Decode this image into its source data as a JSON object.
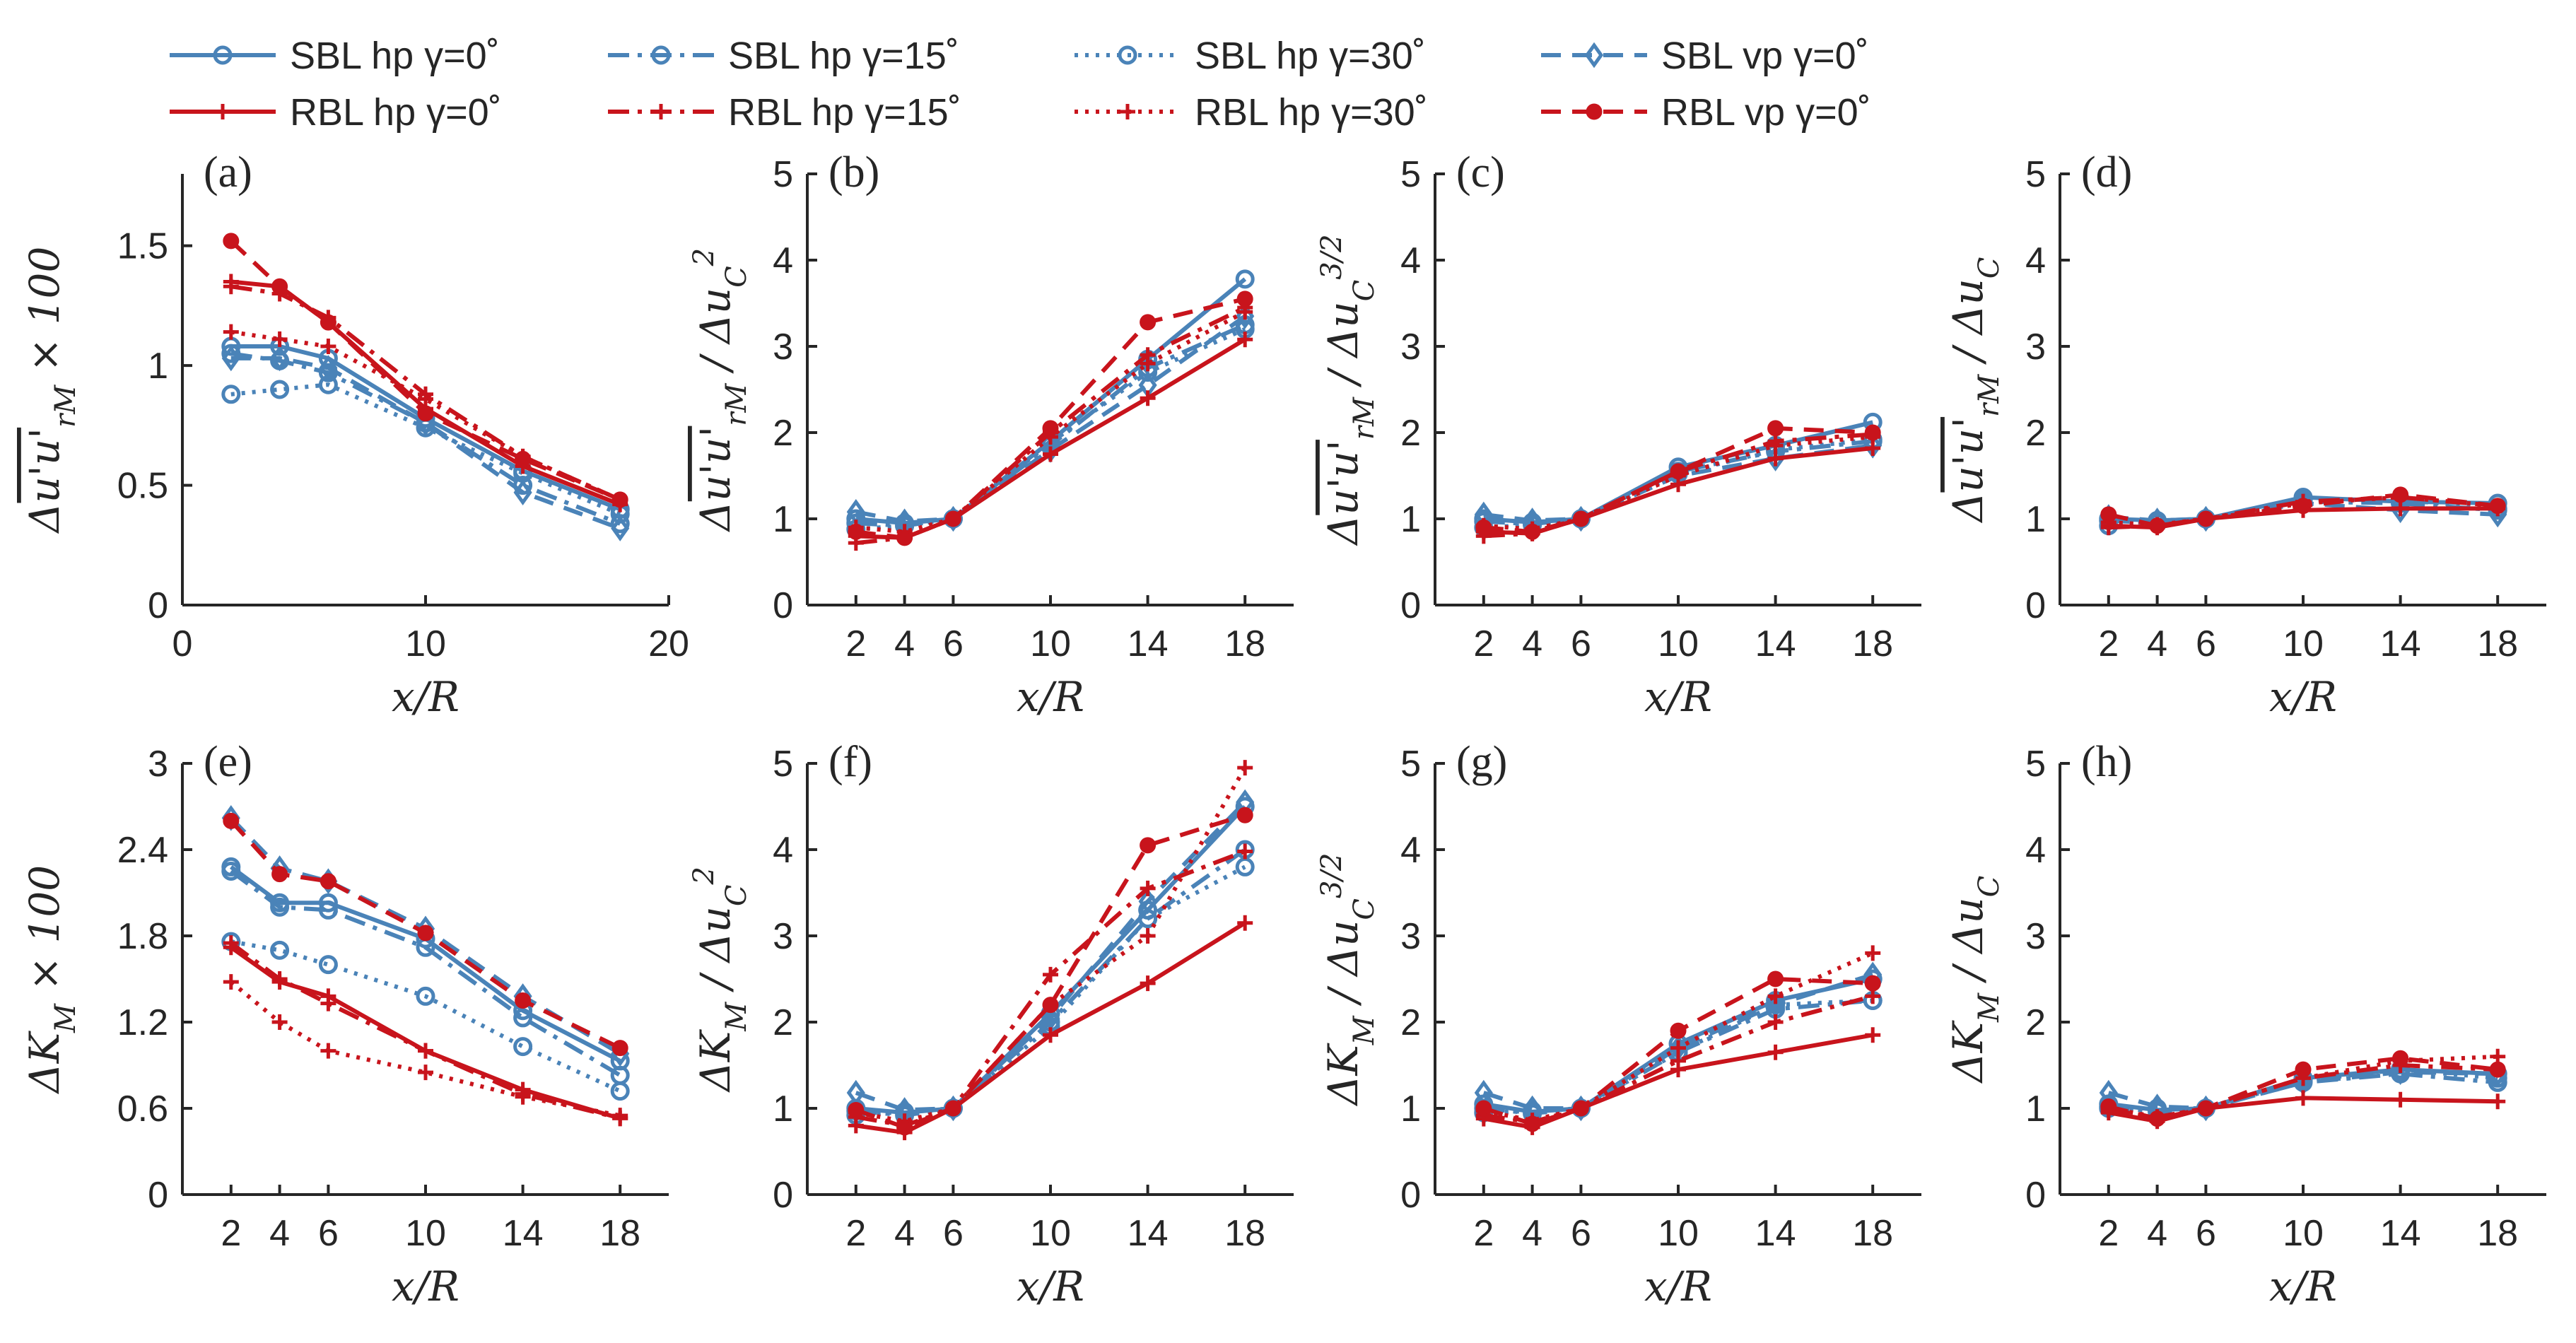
{
  "colors": {
    "sbl": "#4a83b8",
    "rbl": "#c8141c",
    "axis": "#262626"
  },
  "legend": [
    {
      "label": "SBL hp γ=0˚",
      "group": "sbl",
      "dash": "solid",
      "marker": "circle"
    },
    {
      "label": "SBL hp γ=15˚",
      "group": "sbl",
      "dash": "dashdot",
      "marker": "circle"
    },
    {
      "label": "SBL hp γ=30˚",
      "group": "sbl",
      "dash": "dotted",
      "marker": "circle"
    },
    {
      "label": "SBL vp γ=0˚",
      "group": "sbl",
      "dash": "dashed",
      "marker": "diamond"
    },
    {
      "label": "RBL hp γ=0˚",
      "group": "rbl",
      "dash": "solid",
      "marker": "plus"
    },
    {
      "label": "RBL hp γ=15˚",
      "group": "rbl",
      "dash": "dashdot",
      "marker": "plus"
    },
    {
      "label": "RBL hp γ=30˚",
      "group": "rbl",
      "dash": "dotted",
      "marker": "plus"
    },
    {
      "label": "RBL vp γ=0˚",
      "group": "rbl",
      "dash": "dashed",
      "marker": "dot"
    }
  ],
  "chart_data": [
    {
      "panel": "(a)",
      "type": "line",
      "ylabel": "Δu'u'_{rM} × 100",
      "xlabel": "x/R",
      "xlim": [
        0,
        20
      ],
      "ylim": [
        0,
        1.8
      ],
      "xticks": [
        0,
        10,
        20
      ],
      "xtick_labels": [
        "0",
        "10",
        "20"
      ],
      "yticks": [
        0,
        0.5,
        1,
        1.5
      ],
      "ytick_labels": [
        "0",
        "0.5",
        "1",
        "1.5"
      ],
      "x": [
        2,
        4,
        6,
        10,
        14,
        18
      ],
      "series": [
        {
          "name": "SBL hp γ=0˚",
          "values": [
            1.08,
            1.08,
            1.03,
            0.78,
            0.56,
            0.4
          ]
        },
        {
          "name": "SBL hp γ=15˚",
          "values": [
            1.05,
            1.02,
            0.97,
            0.76,
            0.5,
            0.34
          ]
        },
        {
          "name": "SBL hp γ=30˚",
          "values": [
            0.88,
            0.9,
            0.92,
            0.74,
            0.55,
            0.38
          ]
        },
        {
          "name": "SBL vp γ=0˚",
          "values": [
            1.03,
            1.03,
            0.99,
            0.76,
            0.47,
            0.32
          ]
        },
        {
          "name": "RBL hp γ=0˚",
          "values": [
            1.35,
            1.33,
            1.18,
            0.82,
            0.58,
            0.42
          ]
        },
        {
          "name": "RBL hp γ=15˚",
          "values": [
            1.33,
            1.3,
            1.2,
            0.88,
            0.62,
            0.44
          ]
        },
        {
          "name": "RBL hp γ=30˚",
          "values": [
            1.14,
            1.11,
            1.08,
            0.86,
            0.62,
            0.44
          ]
        },
        {
          "name": "RBL vp γ=0˚",
          "values": [
            1.52,
            1.33,
            1.18,
            0.8,
            0.61,
            0.44
          ]
        }
      ]
    },
    {
      "panel": "(b)",
      "type": "line",
      "ylabel": "Δu'u'_{rM} / Δu_C^2",
      "xlabel": "x/R",
      "xlim": [
        0,
        20
      ],
      "ylim": [
        0,
        5
      ],
      "xticks": [
        2,
        4,
        6,
        10,
        14,
        18
      ],
      "xtick_labels": [
        "2",
        "4",
        "6",
        "10",
        "14",
        "18"
      ],
      "yticks": [
        0,
        1,
        2,
        3,
        4,
        5
      ],
      "ytick_labels": [
        "0",
        "1",
        "2",
        "3",
        "4",
        "5"
      ],
      "x": [
        2,
        4,
        6,
        10,
        14,
        18
      ],
      "series": [
        {
          "name": "SBL hp γ=0˚",
          "values": [
            1.0,
            0.95,
            1.0,
            1.9,
            2.85,
            3.78
          ]
        },
        {
          "name": "SBL hp γ=15˚",
          "values": [
            0.95,
            0.92,
            1.0,
            1.85,
            2.75,
            3.25
          ]
        },
        {
          "name": "SBL hp γ=30˚",
          "values": [
            0.88,
            0.92,
            1.0,
            1.88,
            2.7,
            3.2
          ]
        },
        {
          "name": "SBL vp γ=0˚",
          "values": [
            1.08,
            0.97,
            1.0,
            1.8,
            2.55,
            3.35
          ]
        },
        {
          "name": "RBL hp γ=0˚",
          "values": [
            0.8,
            0.78,
            1.0,
            1.75,
            2.4,
            3.08
          ]
        },
        {
          "name": "RBL hp γ=15˚",
          "values": [
            0.72,
            0.78,
            1.0,
            2.0,
            2.9,
            3.45
          ]
        },
        {
          "name": "RBL hp γ=30˚",
          "values": [
            0.9,
            0.85,
            1.0,
            1.95,
            2.8,
            3.4
          ]
        },
        {
          "name": "RBL vp γ=0˚",
          "values": [
            0.85,
            0.78,
            1.0,
            2.05,
            3.28,
            3.55
          ]
        }
      ]
    },
    {
      "panel": "(c)",
      "type": "line",
      "ylabel": "Δu'u'_{rM} / Δu_C^{3/2}",
      "xlabel": "x/R",
      "xlim": [
        0,
        20
      ],
      "ylim": [
        0,
        5
      ],
      "xticks": [
        2,
        4,
        6,
        10,
        14,
        18
      ],
      "xtick_labels": [
        "2",
        "4",
        "6",
        "10",
        "14",
        "18"
      ],
      "yticks": [
        0,
        1,
        2,
        3,
        4,
        5
      ],
      "ytick_labels": [
        "0",
        "1",
        "2",
        "3",
        "4",
        "5"
      ],
      "x": [
        2,
        4,
        6,
        10,
        14,
        18
      ],
      "series": [
        {
          "name": "SBL hp γ=0˚",
          "values": [
            1.0,
            0.96,
            1.0,
            1.6,
            1.85,
            2.12
          ]
        },
        {
          "name": "SBL hp γ=15˚",
          "values": [
            0.97,
            0.94,
            1.0,
            1.55,
            1.78,
            1.9
          ]
        },
        {
          "name": "SBL hp γ=30˚",
          "values": [
            0.9,
            0.93,
            1.0,
            1.52,
            1.8,
            1.92
          ]
        },
        {
          "name": "SBL vp γ=0˚",
          "values": [
            1.05,
            0.98,
            1.0,
            1.5,
            1.7,
            1.85
          ]
        },
        {
          "name": "RBL hp γ=0˚",
          "values": [
            0.85,
            0.83,
            1.0,
            1.4,
            1.7,
            1.82
          ]
        },
        {
          "name": "RBL hp γ=15˚",
          "values": [
            0.8,
            0.83,
            1.0,
            1.55,
            1.9,
            1.98
          ]
        },
        {
          "name": "RBL hp γ=30˚",
          "values": [
            0.92,
            0.88,
            1.0,
            1.5,
            1.85,
            1.95
          ]
        },
        {
          "name": "RBL vp γ=0˚",
          "values": [
            0.9,
            0.85,
            1.0,
            1.55,
            2.05,
            2.0
          ]
        }
      ]
    },
    {
      "panel": "(d)",
      "type": "line",
      "ylabel": "Δu'u'_{rM} / Δu_C",
      "xlabel": "x/R",
      "xlim": [
        0,
        20
      ],
      "ylim": [
        0,
        5
      ],
      "xticks": [
        2,
        4,
        6,
        10,
        14,
        18
      ],
      "xtick_labels": [
        "2",
        "4",
        "6",
        "10",
        "14",
        "18"
      ],
      "yticks": [
        0,
        1,
        2,
        3,
        4,
        5
      ],
      "ytick_labels": [
        "0",
        "1",
        "2",
        "3",
        "4",
        "5"
      ],
      "x": [
        2,
        4,
        6,
        10,
        14,
        18
      ],
      "series": [
        {
          "name": "SBL hp γ=0˚",
          "values": [
            1.0,
            0.98,
            1.0,
            1.25,
            1.2,
            1.18
          ]
        },
        {
          "name": "SBL hp γ=15˚",
          "values": [
            0.98,
            0.95,
            1.0,
            1.2,
            1.18,
            1.1
          ]
        },
        {
          "name": "SBL hp γ=30˚",
          "values": [
            0.92,
            0.95,
            1.0,
            1.22,
            1.22,
            1.12
          ]
        },
        {
          "name": "SBL vp γ=0˚",
          "values": [
            1.02,
            0.98,
            1.0,
            1.18,
            1.1,
            1.05
          ]
        },
        {
          "name": "RBL hp γ=0˚",
          "values": [
            0.92,
            0.9,
            1.0,
            1.1,
            1.12,
            1.12
          ]
        },
        {
          "name": "RBL hp γ=15˚",
          "values": [
            0.9,
            0.92,
            1.0,
            1.2,
            1.25,
            1.15
          ]
        },
        {
          "name": "RBL hp γ=30˚",
          "values": [
            0.96,
            0.93,
            1.0,
            1.18,
            1.25,
            1.15
          ]
        },
        {
          "name": "RBL vp γ=0˚",
          "values": [
            1.05,
            0.92,
            1.0,
            1.15,
            1.28,
            1.15
          ]
        }
      ]
    },
    {
      "panel": "(e)",
      "type": "line",
      "ylabel": "ΔK_M × 100",
      "xlabel": "x/R",
      "xlim": [
        0,
        20
      ],
      "ylim": [
        0,
        3
      ],
      "xticks": [
        2,
        4,
        6,
        10,
        14,
        18
      ],
      "xtick_labels": [
        "2",
        "4",
        "6",
        "10",
        "14",
        "18"
      ],
      "yticks": [
        0,
        0.6,
        1.2,
        1.8,
        2.4,
        3
      ],
      "ytick_labels": [
        "0",
        "0.6",
        "1.2",
        "1.8",
        "2.4",
        "3"
      ],
      "x": [
        2,
        4,
        6,
        10,
        14,
        18
      ],
      "series": [
        {
          "name": "SBL hp γ=0˚",
          "values": [
            2.28,
            2.03,
            2.03,
            1.78,
            1.28,
            0.93
          ]
        },
        {
          "name": "SBL hp γ=15˚",
          "values": [
            2.25,
            2.0,
            1.98,
            1.72,
            1.23,
            0.83
          ]
        },
        {
          "name": "SBL hp γ=30˚",
          "values": [
            1.76,
            1.7,
            1.6,
            1.38,
            1.03,
            0.72
          ]
        },
        {
          "name": "SBL vp γ=0˚",
          "values": [
            2.62,
            2.27,
            2.18,
            1.85,
            1.38,
            0.98
          ]
        },
        {
          "name": "RBL hp γ=0˚",
          "values": [
            1.72,
            1.48,
            1.38,
            1.0,
            0.73,
            0.53
          ]
        },
        {
          "name": "RBL hp γ=15˚",
          "values": [
            1.75,
            1.5,
            1.33,
            1.0,
            0.7,
            0.53
          ]
        },
        {
          "name": "RBL hp γ=30˚",
          "values": [
            1.48,
            1.2,
            1.0,
            0.85,
            0.68,
            0.55
          ]
        },
        {
          "name": "RBL vp γ=0˚",
          "values": [
            2.6,
            2.23,
            2.18,
            1.82,
            1.35,
            1.02
          ]
        }
      ]
    },
    {
      "panel": "(f)",
      "type": "line",
      "ylabel": "ΔK_M / Δu_C^2",
      "xlabel": "x/R",
      "xlim": [
        0,
        20
      ],
      "ylim": [
        0,
        5
      ],
      "xticks": [
        2,
        4,
        6,
        10,
        14,
        18
      ],
      "xtick_labels": [
        "2",
        "4",
        "6",
        "10",
        "14",
        "18"
      ],
      "yticks": [
        0,
        1,
        2,
        3,
        4,
        5
      ],
      "ytick_labels": [
        "0",
        "1",
        "2",
        "3",
        "4",
        "5"
      ],
      "x": [
        2,
        4,
        6,
        10,
        14,
        18
      ],
      "series": [
        {
          "name": "SBL hp γ=0˚",
          "values": [
            1.0,
            0.95,
            1.0,
            2.1,
            3.3,
            4.5
          ]
        },
        {
          "name": "SBL hp γ=15˚",
          "values": [
            0.97,
            0.92,
            1.0,
            2.0,
            3.2,
            4.0
          ]
        },
        {
          "name": "SBL hp γ=30˚",
          "values": [
            0.92,
            0.96,
            1.0,
            1.95,
            3.2,
            3.8
          ]
        },
        {
          "name": "SBL vp γ=0˚",
          "values": [
            1.18,
            0.98,
            1.0,
            2.05,
            3.4,
            4.55
          ]
        },
        {
          "name": "RBL hp γ=0˚",
          "values": [
            0.8,
            0.72,
            1.0,
            1.85,
            2.45,
            3.15
          ]
        },
        {
          "name": "RBL hp γ=15˚",
          "values": [
            0.9,
            0.8,
            1.0,
            2.55,
            3.55,
            3.98
          ]
        },
        {
          "name": "RBL hp γ=30˚",
          "values": [
            0.95,
            0.85,
            1.0,
            2.2,
            3.0,
            4.95
          ]
        },
        {
          "name": "RBL vp γ=0˚",
          "values": [
            0.98,
            0.78,
            1.0,
            2.2,
            4.05,
            4.4
          ]
        }
      ]
    },
    {
      "panel": "(g)",
      "type": "line",
      "ylabel": "ΔK_M / Δu_C^{3/2}",
      "xlabel": "x/R",
      "xlim": [
        0,
        20
      ],
      "ylim": [
        0,
        5
      ],
      "xticks": [
        2,
        4,
        6,
        10,
        14,
        18
      ],
      "xtick_labels": [
        "2",
        "4",
        "6",
        "10",
        "14",
        "18"
      ],
      "yticks": [
        0,
        1,
        2,
        3,
        4,
        5
      ],
      "ytick_labels": [
        "0",
        "1",
        "2",
        "3",
        "4",
        "5"
      ],
      "x": [
        2,
        4,
        6,
        10,
        14,
        18
      ],
      "series": [
        {
          "name": "SBL hp γ=0˚",
          "values": [
            1.05,
            0.96,
            1.0,
            1.75,
            2.25,
            2.5
          ]
        },
        {
          "name": "SBL hp γ=15˚",
          "values": [
            1.0,
            0.94,
            1.0,
            1.65,
            2.15,
            2.25
          ]
        },
        {
          "name": "SBL hp γ=30˚",
          "values": [
            0.95,
            0.97,
            1.0,
            1.65,
            2.2,
            2.25
          ]
        },
        {
          "name": "SBL vp γ=0˚",
          "values": [
            1.18,
            1.0,
            1.0,
            1.7,
            2.2,
            2.55
          ]
        },
        {
          "name": "RBL hp γ=0˚",
          "values": [
            0.88,
            0.78,
            1.0,
            1.45,
            1.65,
            1.85
          ]
        },
        {
          "name": "RBL hp γ=15˚",
          "values": [
            0.92,
            0.84,
            1.0,
            1.55,
            2.0,
            2.3
          ]
        },
        {
          "name": "RBL hp γ=30˚",
          "values": [
            0.97,
            0.86,
            1.0,
            1.7,
            2.3,
            2.8
          ]
        },
        {
          "name": "RBL vp γ=0˚",
          "values": [
            1.0,
            0.82,
            1.0,
            1.9,
            2.5,
            2.45
          ]
        }
      ]
    },
    {
      "panel": "(h)",
      "type": "line",
      "ylabel": "ΔK_M / Δu_C",
      "xlabel": "x/R",
      "xlim": [
        0,
        20
      ],
      "ylim": [
        0,
        5
      ],
      "xticks": [
        2,
        4,
        6,
        10,
        14,
        18
      ],
      "xtick_labels": [
        "2",
        "4",
        "6",
        "10",
        "14",
        "18"
      ],
      "yticks": [
        0,
        1,
        2,
        3,
        4,
        5
      ],
      "ytick_labels": [
        "0",
        "1",
        "2",
        "3",
        "4",
        "5"
      ],
      "x": [
        2,
        4,
        6,
        10,
        14,
        18
      ],
      "series": [
        {
          "name": "SBL hp γ=0˚",
          "values": [
            1.05,
            0.98,
            1.0,
            1.35,
            1.45,
            1.4
          ]
        },
        {
          "name": "SBL hp γ=15˚",
          "values": [
            1.02,
            0.96,
            1.0,
            1.3,
            1.4,
            1.3
          ]
        },
        {
          "name": "SBL hp γ=30˚",
          "values": [
            1.0,
            1.0,
            1.0,
            1.32,
            1.45,
            1.35
          ]
        },
        {
          "name": "SBL vp γ=0˚",
          "values": [
            1.18,
            1.02,
            1.0,
            1.3,
            1.42,
            1.4
          ]
        },
        {
          "name": "RBL hp γ=0˚",
          "values": [
            0.95,
            0.85,
            1.0,
            1.12,
            1.1,
            1.08
          ]
        },
        {
          "name": "RBL hp γ=15˚",
          "values": [
            0.98,
            0.9,
            1.0,
            1.35,
            1.5,
            1.45
          ]
        },
        {
          "name": "RBL hp γ=30˚",
          "values": [
            1.0,
            0.9,
            1.0,
            1.35,
            1.55,
            1.6
          ]
        },
        {
          "name": "RBL vp γ=0˚",
          "values": [
            1.02,
            0.88,
            1.0,
            1.45,
            1.58,
            1.45
          ]
        }
      ]
    }
  ]
}
